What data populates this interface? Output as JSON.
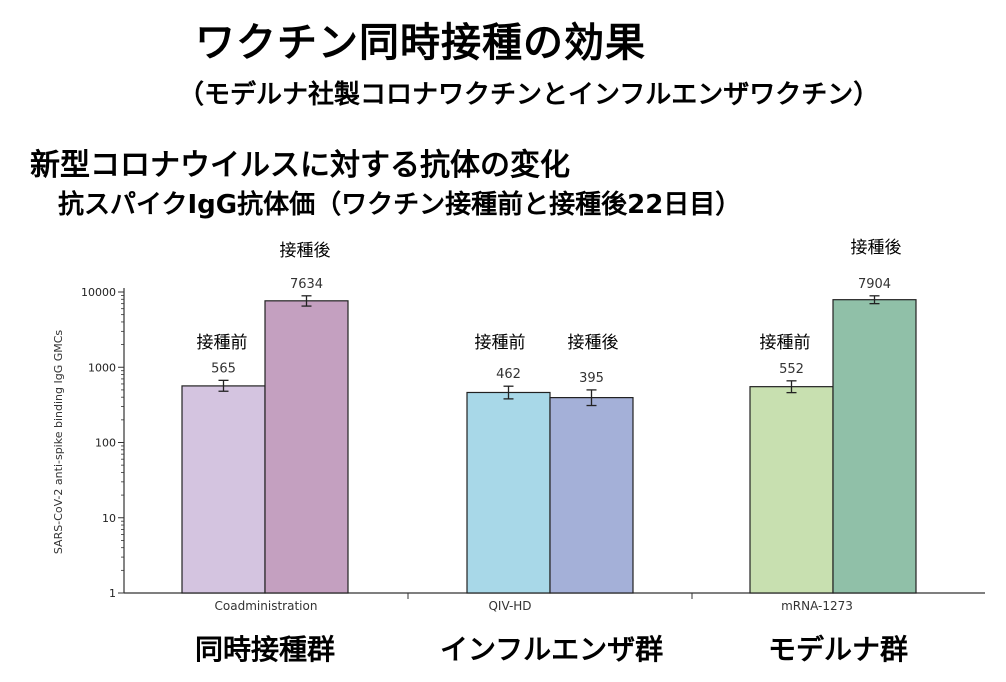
{
  "header": {
    "title": "ワクチン同時接種の効果",
    "subtitle": "（モデルナ社製コロナワクチンとインフルエンザワクチン）",
    "heading": "新型コロナウイルスに対する抗体の変化",
    "subheading": "抗スパイクIgG抗体価（ワクチン接種前と接種後22日目）"
  },
  "chart_data": {
    "type": "bar",
    "scale": "log",
    "ylabel": "SARS-CoV-2 anti-spike binding IgG GMCs",
    "ylim": [
      1,
      10000
    ],
    "y_ticks": [
      "1",
      "10",
      "100",
      "1000",
      "10000"
    ],
    "categories": [
      "Coadministration",
      "QIV-HD",
      "mRNA-1273"
    ],
    "group_labels": [
      "同時接種群",
      "インフルエンザ群",
      "モデルナ群"
    ],
    "bars": [
      {
        "group": 0,
        "phase": "接種前",
        "value": 565,
        "label": "565",
        "err_low": 480,
        "err_high": 670,
        "color": "#d4c4e0"
      },
      {
        "group": 0,
        "phase": "接種後",
        "value": 7634,
        "label": "7634",
        "err_low": 6500,
        "err_high": 8900,
        "color": "#c4a0c0"
      },
      {
        "group": 1,
        "phase": "接種前",
        "value": 462,
        "label": "462",
        "err_low": 380,
        "err_high": 560,
        "color": "#a8d8e8"
      },
      {
        "group": 1,
        "phase": "接種後",
        "value": 395,
        "label": "395",
        "err_low": 310,
        "err_high": 500,
        "color": "#a4b0d8"
      },
      {
        "group": 2,
        "phase": "接種前",
        "value": 552,
        "label": "552",
        "err_low": 460,
        "err_high": 660,
        "color": "#c8e0b0"
      },
      {
        "group": 2,
        "phase": "接種後",
        "value": 7904,
        "label": "7904",
        "err_low": 7000,
        "err_high": 8900,
        "color": "#90c0a8"
      }
    ],
    "phase_labels": {
      "before": "接種前",
      "after": "接種後"
    }
  }
}
